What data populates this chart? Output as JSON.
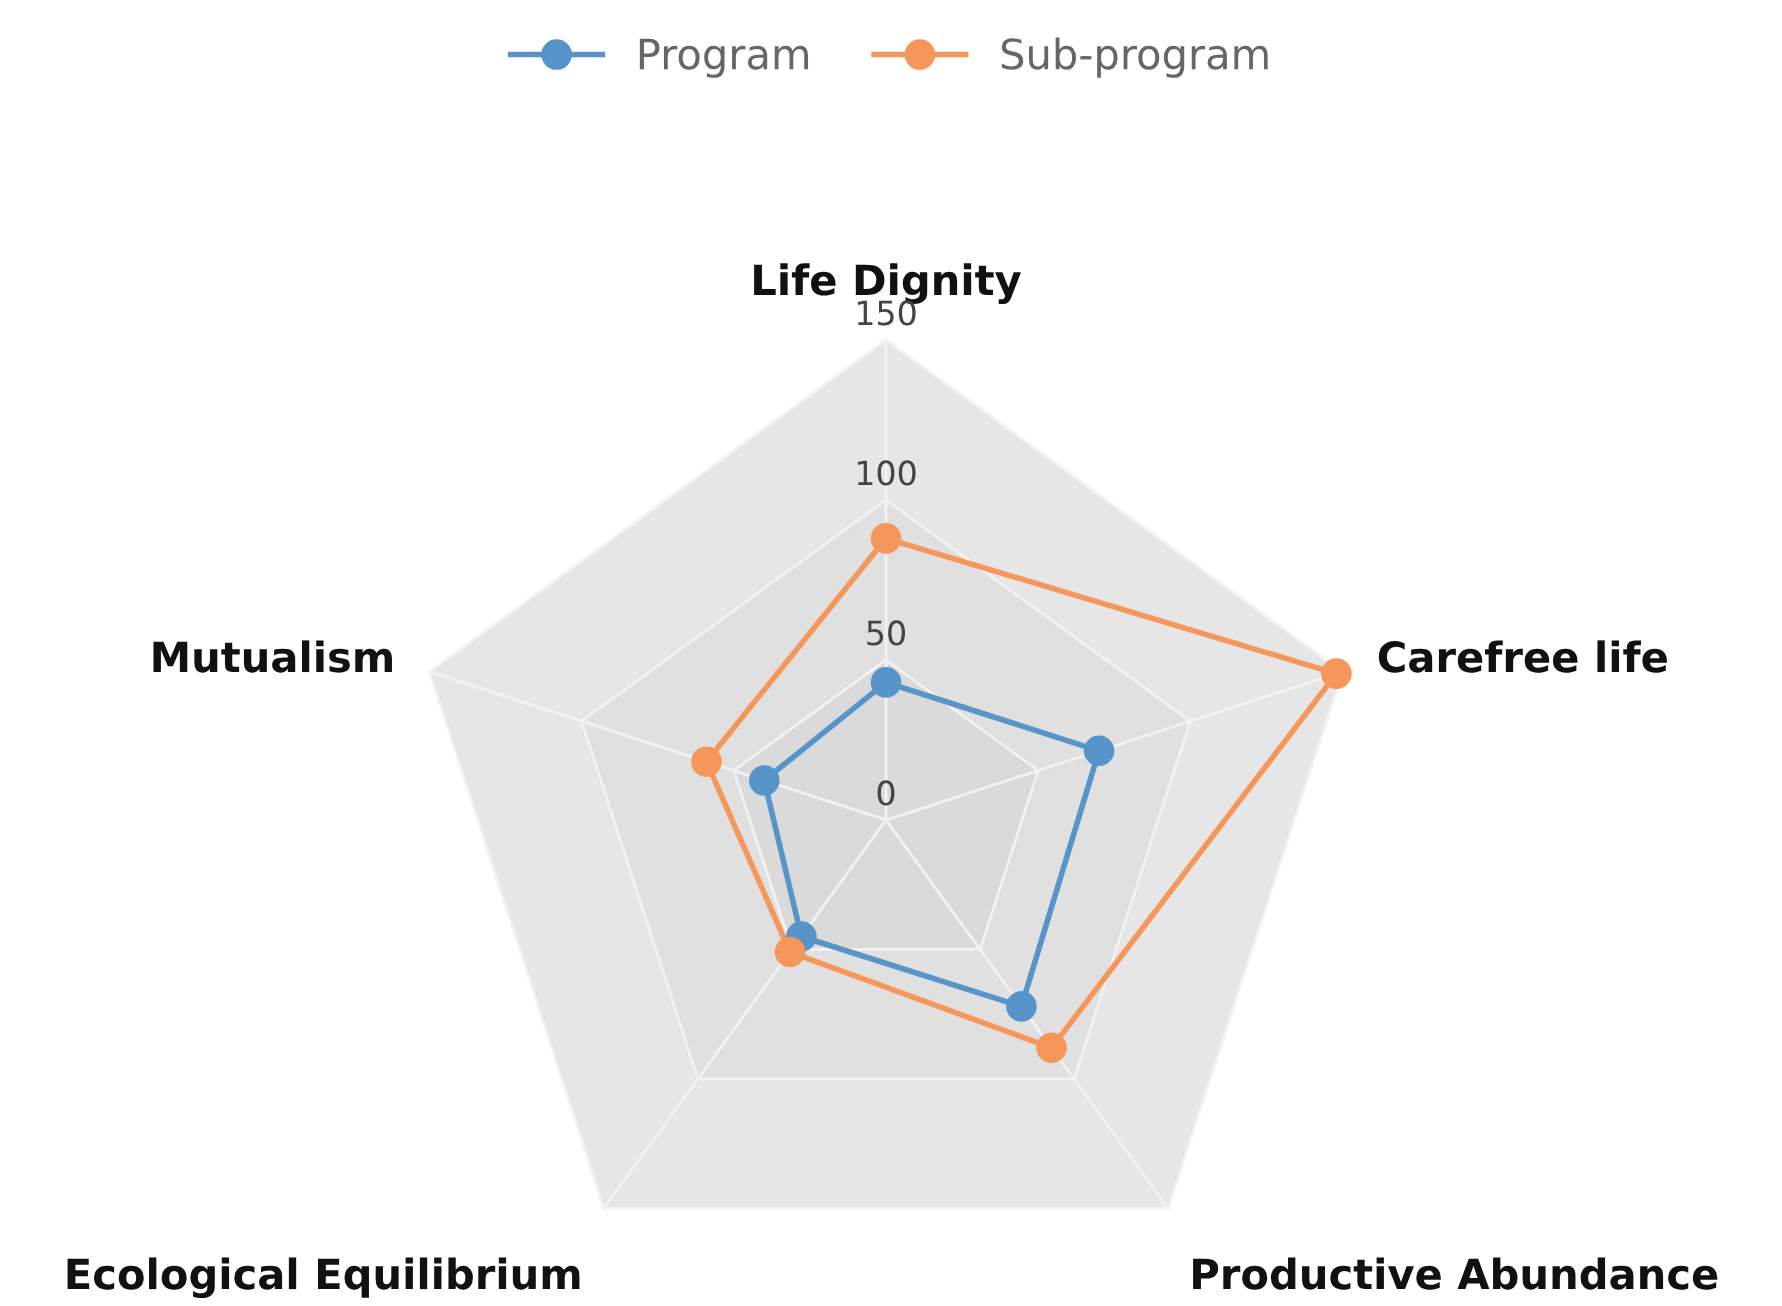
{
  "chart_data": {
    "type": "radar",
    "categories": [
      "Life Dignity",
      "Carefree life",
      "Productive Abundance",
      "Ecological Equilibrium",
      "Mutualism"
    ],
    "series": [
      {
        "name": "Program",
        "color": "#5794c9",
        "values": [
          43,
          70,
          72,
          45,
          40
        ]
      },
      {
        "name": "Sub-program",
        "color": "#f5975a",
        "values": [
          88,
          148,
          88,
          51,
          59
        ]
      }
    ],
    "ylim": [
      0,
      150
    ],
    "yticks": [
      0,
      50,
      100,
      150
    ],
    "legend": "top",
    "marker": "circle",
    "line_style": "solid",
    "grid": true
  }
}
